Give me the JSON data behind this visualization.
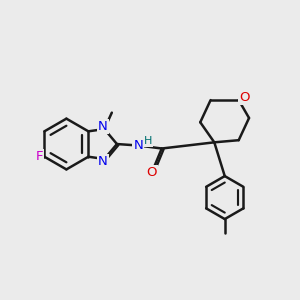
{
  "bg_color": "#ebebeb",
  "bond_color": "#1a1a1a",
  "bond_width": 1.8,
  "atom_colors": {
    "N": "#0000ee",
    "O": "#dd0000",
    "F": "#cc00cc",
    "H": "#007070",
    "C": "#1a1a1a"
  },
  "font_size": 8.5,
  "figsize": [
    3.0,
    3.0
  ],
  "dpi": 100
}
